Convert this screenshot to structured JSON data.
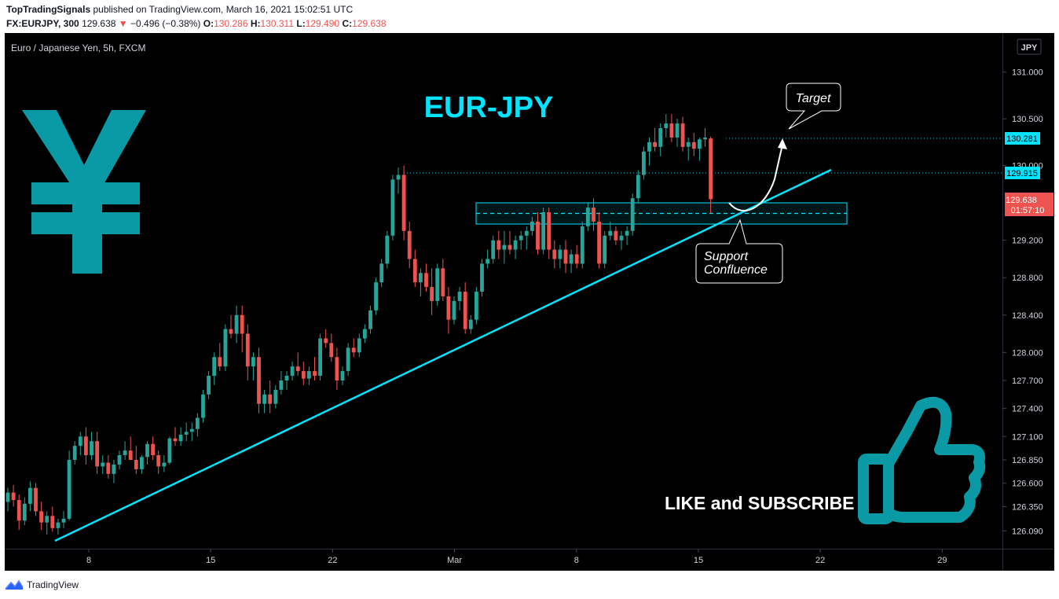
{
  "header": {
    "author": "TopTradingSignals",
    "published_text": "published on TradingView.com, March 16, 2021 15:02:51 UTC",
    "symbol": "FX:EURJPY, 300",
    "price": "129.638",
    "change_arrow": "▼",
    "change": "−0.496 (−0.38%)",
    "o_label": "O:",
    "o_value": "130.286",
    "h_label": "H:",
    "h_value": "130.311",
    "l_label": "L:",
    "l_value": "129.490",
    "c_label": "C:",
    "c_value": "129.638"
  },
  "chart_info": "Euro / Japanese Yen, 5h, FXCM",
  "currency_label": "JPY",
  "annotations": {
    "title": "EUR-JPY",
    "target": "Target",
    "support_line1": "Support",
    "support_line2": "Confluence",
    "cta": "LIKE and SUBSCRIBE"
  },
  "price_tags": {
    "upper": "130.281",
    "lower": "129.915",
    "current": "129.638",
    "countdown": "01:57:10"
  },
  "footer": {
    "brand": "TradingView"
  },
  "colors": {
    "up": "#26a69a",
    "down": "#ef5350",
    "accent": "#00e5ff",
    "teal_icon": "#0a9aa6"
  },
  "chart_data": {
    "type": "candlestick",
    "title": "",
    "xlabel": "",
    "ylabel": "",
    "ylim": [
      125.95,
      131.25
    ],
    "ytick_labels": [
      "131.000",
      "130.500",
      "130.000",
      "129.200",
      "128.800",
      "128.400",
      "128.000",
      "127.700",
      "127.400",
      "127.100",
      "126.850",
      "126.600",
      "126.350",
      "126.090"
    ],
    "ytick_values": [
      131.0,
      130.5,
      130.0,
      129.2,
      128.8,
      128.4,
      128.0,
      127.7,
      127.4,
      127.1,
      126.85,
      126.6,
      126.35,
      126.09
    ],
    "xtick_labels": [
      "8",
      "15",
      "22",
      "Mar",
      "8",
      "15",
      "22",
      "29"
    ],
    "xtick_positions": [
      6,
      13,
      20,
      27,
      34,
      41,
      48,
      55
    ],
    "x_unit": "days from Feb 2, 2021",
    "ohlc": [
      [
        126.4,
        126.55,
        126.3,
        126.5
      ],
      [
        126.5,
        126.58,
        126.35,
        126.42
      ],
      [
        126.42,
        126.48,
        126.1,
        126.2
      ],
      [
        126.2,
        126.45,
        126.15,
        126.38
      ],
      [
        126.38,
        126.62,
        126.3,
        126.55
      ],
      [
        126.55,
        126.6,
        126.25,
        126.3
      ],
      [
        126.3,
        126.4,
        126.1,
        126.18
      ],
      [
        126.18,
        126.3,
        126.05,
        126.25
      ],
      [
        126.25,
        126.35,
        126.08,
        126.12
      ],
      [
        126.12,
        126.22,
        126.05,
        126.18
      ],
      [
        126.18,
        126.3,
        126.12,
        126.22
      ],
      [
        126.22,
        126.95,
        126.2,
        126.85
      ],
      [
        126.85,
        127.05,
        126.8,
        127.0
      ],
      [
        127.0,
        127.15,
        126.9,
        127.1
      ],
      [
        127.1,
        127.2,
        126.8,
        126.9
      ],
      [
        126.9,
        127.15,
        126.85,
        127.05
      ],
      [
        127.05,
        127.15,
        126.7,
        126.78
      ],
      [
        126.78,
        126.9,
        126.7,
        126.82
      ],
      [
        126.82,
        126.9,
        126.65,
        126.7
      ],
      [
        126.7,
        126.85,
        126.6,
        126.8
      ],
      [
        126.8,
        126.95,
        126.75,
        126.9
      ],
      [
        126.9,
        127.05,
        126.85,
        126.95
      ],
      [
        126.95,
        127.1,
        126.9,
        126.85
      ],
      [
        126.85,
        127.0,
        126.7,
        126.75
      ],
      [
        126.75,
        126.9,
        126.7,
        126.88
      ],
      [
        126.88,
        127.05,
        126.8,
        127.02
      ],
      [
        127.02,
        127.1,
        126.85,
        126.9
      ],
      [
        126.9,
        126.95,
        126.7,
        126.78
      ],
      [
        126.78,
        126.9,
        126.72,
        126.82
      ],
      [
        126.82,
        127.1,
        126.8,
        127.08
      ],
      [
        127.08,
        127.2,
        127.0,
        127.05
      ],
      [
        127.05,
        127.2,
        127.0,
        127.12
      ],
      [
        127.12,
        127.25,
        127.05,
        127.15
      ],
      [
        127.15,
        127.25,
        127.05,
        127.18
      ],
      [
        127.18,
        127.35,
        127.1,
        127.3
      ],
      [
        127.3,
        127.6,
        127.25,
        127.55
      ],
      [
        127.55,
        127.8,
        127.5,
        127.75
      ],
      [
        127.75,
        128.0,
        127.65,
        127.95
      ],
      [
        127.95,
        128.1,
        127.8,
        127.85
      ],
      [
        127.85,
        128.3,
        127.8,
        128.25
      ],
      [
        128.25,
        128.4,
        128.15,
        128.2
      ],
      [
        128.2,
        128.5,
        128.1,
        128.4
      ],
      [
        128.4,
        128.5,
        128.0,
        128.2
      ],
      [
        128.2,
        128.3,
        127.7,
        127.85
      ],
      [
        127.85,
        128.0,
        127.7,
        127.95
      ],
      [
        127.95,
        128.05,
        127.35,
        127.45
      ],
      [
        127.45,
        127.6,
        127.35,
        127.55
      ],
      [
        127.55,
        127.7,
        127.35,
        127.45
      ],
      [
        127.45,
        127.65,
        127.4,
        127.6
      ],
      [
        127.6,
        127.8,
        127.55,
        127.7
      ],
      [
        127.7,
        127.8,
        127.6,
        127.75
      ],
      [
        127.75,
        127.9,
        127.7,
        127.85
      ],
      [
        127.85,
        128.0,
        127.75,
        127.8
      ],
      [
        127.8,
        127.9,
        127.65,
        127.72
      ],
      [
        127.72,
        127.85,
        127.65,
        127.8
      ],
      [
        127.8,
        127.95,
        127.7,
        127.75
      ],
      [
        127.75,
        128.2,
        127.7,
        128.15
      ],
      [
        128.15,
        128.25,
        128.05,
        128.1
      ],
      [
        128.1,
        128.2,
        127.9,
        127.95
      ],
      [
        127.95,
        128.05,
        127.6,
        127.7
      ],
      [
        127.7,
        127.85,
        127.65,
        127.8
      ],
      [
        127.8,
        128.1,
        127.75,
        128.05
      ],
      [
        128.05,
        128.15,
        127.95,
        128.0
      ],
      [
        128.0,
        128.2,
        127.95,
        128.15
      ],
      [
        128.15,
        128.3,
        128.1,
        128.25
      ],
      [
        128.25,
        128.5,
        128.2,
        128.45
      ],
      [
        128.45,
        128.8,
        128.4,
        128.75
      ],
      [
        128.75,
        129.0,
        128.7,
        128.95
      ],
      [
        128.95,
        129.3,
        128.9,
        129.25
      ],
      [
        129.25,
        129.9,
        129.2,
        129.85
      ],
      [
        129.85,
        129.98,
        129.7,
        129.9
      ],
      [
        129.9,
        130.0,
        129.2,
        129.3
      ],
      [
        129.3,
        129.4,
        128.9,
        129.0
      ],
      [
        129.0,
        129.1,
        128.7,
        128.75
      ],
      [
        128.75,
        128.9,
        128.6,
        128.85
      ],
      [
        128.85,
        128.95,
        128.65,
        128.7
      ],
      [
        128.7,
        128.9,
        128.4,
        128.55
      ],
      [
        128.55,
        128.95,
        128.5,
        128.9
      ],
      [
        128.9,
        129.0,
        128.55,
        128.6
      ],
      [
        128.6,
        128.7,
        128.2,
        128.35
      ],
      [
        128.35,
        128.6,
        128.3,
        128.55
      ],
      [
        128.55,
        128.7,
        128.45,
        128.65
      ],
      [
        128.65,
        128.75,
        128.2,
        128.25
      ],
      [
        128.25,
        128.4,
        128.2,
        128.35
      ],
      [
        128.35,
        128.7,
        128.3,
        128.65
      ],
      [
        128.65,
        129.0,
        128.6,
        128.95
      ],
      [
        128.95,
        129.1,
        128.9,
        129.0
      ],
      [
        129.0,
        129.25,
        128.95,
        129.2
      ],
      [
        129.2,
        129.3,
        129.0,
        129.1
      ],
      [
        129.1,
        129.3,
        128.95,
        129.15
      ],
      [
        129.15,
        129.3,
        129.05,
        129.1
      ],
      [
        129.1,
        129.25,
        129.0,
        129.2
      ],
      [
        129.2,
        129.3,
        129.1,
        129.25
      ],
      [
        129.25,
        129.35,
        129.1,
        129.3
      ],
      [
        129.3,
        129.45,
        129.25,
        129.4
      ],
      [
        129.4,
        129.5,
        129.05,
        129.1
      ],
      [
        129.1,
        129.55,
        129.05,
        129.5
      ],
      [
        129.5,
        129.55,
        129.0,
        129.1
      ],
      [
        129.1,
        129.2,
        128.9,
        129.0
      ],
      [
        129.0,
        129.15,
        128.9,
        129.1
      ],
      [
        129.1,
        129.2,
        128.85,
        128.95
      ],
      [
        128.95,
        129.1,
        128.85,
        129.05
      ],
      [
        129.05,
        129.15,
        128.9,
        128.95
      ],
      [
        128.95,
        129.4,
        128.9,
        129.35
      ],
      [
        129.35,
        129.6,
        129.3,
        129.55
      ],
      [
        129.55,
        129.65,
        129.3,
        129.4
      ],
      [
        129.4,
        129.5,
        128.9,
        128.95
      ],
      [
        128.95,
        129.3,
        128.9,
        129.25
      ],
      [
        129.25,
        129.4,
        129.2,
        129.3
      ],
      [
        129.3,
        129.35,
        129.15,
        129.2
      ],
      [
        129.2,
        129.3,
        129.1,
        129.25
      ],
      [
        129.25,
        129.35,
        129.15,
        129.3
      ],
      [
        129.3,
        129.7,
        129.25,
        129.65
      ],
      [
        129.65,
        129.95,
        129.6,
        129.9
      ],
      [
        129.9,
        130.2,
        129.85,
        130.15
      ],
      [
        130.15,
        130.3,
        130.0,
        130.25
      ],
      [
        130.25,
        130.4,
        130.15,
        130.2
      ],
      [
        130.2,
        130.45,
        130.1,
        130.4
      ],
      [
        130.4,
        130.55,
        130.3,
        130.45
      ],
      [
        130.45,
        130.55,
        130.25,
        130.3
      ],
      [
        130.3,
        130.5,
        130.2,
        130.45
      ],
      [
        130.45,
        130.52,
        130.15,
        130.2
      ],
      [
        130.2,
        130.3,
        130.05,
        130.25
      ],
      [
        130.25,
        130.35,
        130.1,
        130.18
      ],
      [
        130.18,
        130.3,
        130.05,
        130.28
      ],
      [
        130.28,
        130.4,
        130.2,
        130.3
      ],
      [
        130.29,
        130.31,
        129.49,
        129.64
      ]
    ]
  }
}
